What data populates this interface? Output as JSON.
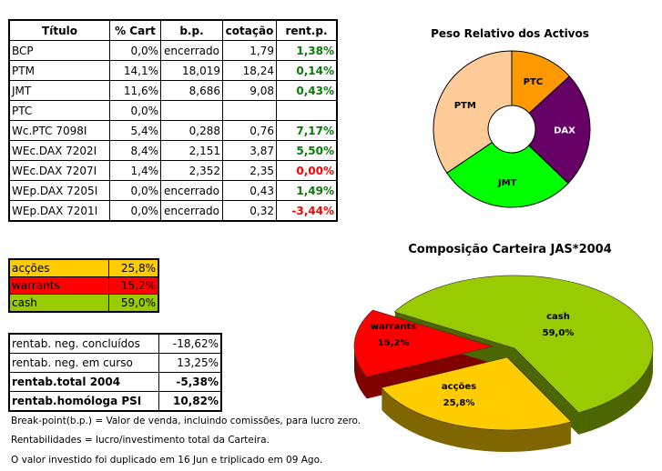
{
  "holdings": {
    "headers": [
      "Título",
      "% Cart",
      "b.p.",
      "cotação",
      "rent.p."
    ],
    "rows": [
      {
        "titulo": "BCP",
        "cart": "0,0%",
        "bp": "encerrado",
        "cotacao": "1,79",
        "rent": "1,38%",
        "sign": "pos"
      },
      {
        "titulo": "PTM",
        "cart": "14,1%",
        "bp": "18,019",
        "cotacao": "18,24",
        "rent": "0,14%",
        "sign": "pos"
      },
      {
        "titulo": "JMT",
        "cart": "11,6%",
        "bp": "8,686",
        "cotacao": "9,08",
        "rent": "0,43%",
        "sign": "pos"
      },
      {
        "titulo": "PTC",
        "cart": "0,0%",
        "bp": "",
        "cotacao": "",
        "rent": "",
        "sign": "pos"
      },
      {
        "titulo": "Wc.PTC 7098I",
        "cart": "5,4%",
        "bp": "0,288",
        "cotacao": "0,76",
        "rent": "7,17%",
        "sign": "pos"
      },
      {
        "titulo": "WEc.DAX 7202I",
        "cart": "8,4%",
        "bp": "2,151",
        "cotacao": "3,87",
        "rent": "5,50%",
        "sign": "pos"
      },
      {
        "titulo": "WEc.DAX 7207I",
        "cart": "1,4%",
        "bp": "2,352",
        "cotacao": "2,35",
        "rent": "0,00%",
        "sign": "neg"
      },
      {
        "titulo": "WEp.DAX 7205I",
        "cart": "0,0%",
        "bp": "encerrado",
        "cotacao": "0,43",
        "rent": "1,49%",
        "sign": "pos"
      },
      {
        "titulo": "WEp.DAX 7201I",
        "cart": "0,0%",
        "bp": "encerrado",
        "cotacao": "0,32",
        "rent": "-3,44%",
        "sign": "neg"
      }
    ]
  },
  "allocation": [
    {
      "label": "acções",
      "value": "25,8%",
      "color": "#ffcc00"
    },
    {
      "label": "warrants",
      "value": "15,2%",
      "color": "#ff0000"
    },
    {
      "label": "cash",
      "value": "59,0%",
      "color": "#99cc00"
    }
  ],
  "returns": [
    {
      "label": "rentab. neg. concluídos",
      "value": "-18,62%",
      "bold": false
    },
    {
      "label": "rentab. neg. em curso",
      "value": "13,25%",
      "bold": false
    },
    {
      "label": "rentab.total 2004",
      "value": "-5,38%",
      "bold": true
    },
    {
      "label": "rentab.homóloga PSI",
      "value": "10,82%",
      "bold": true
    }
  ],
  "notes": [
    "Break-point(b.p.) = Valor de venda, incluindo comissões, para lucro zero.",
    "Rentabilidades = lucro/investimento total da Carteira.",
    "O valor investido foi duplicado em 16 Jun e triplicado em 09 Ago."
  ],
  "chart_data": [
    {
      "type": "pie",
      "title": "Peso Relativo dos Activos",
      "donut": true,
      "categories": [
        "PTC",
        "DAX",
        "JMT",
        "PTM"
      ],
      "values": [
        5.4,
        9.8,
        11.6,
        14.1
      ],
      "colors": [
        "#ff9900",
        "#660066",
        "#00ff00",
        "#ffcc99"
      ],
      "label_colors": [
        "#000",
        "#fff",
        "#000",
        "#000"
      ]
    },
    {
      "type": "pie",
      "title": "Composição Carteira JAS*2004",
      "3d": true,
      "categories": [
        "cash",
        "acções",
        "warrants"
      ],
      "values": [
        59.0,
        25.8,
        15.2
      ],
      "labels": [
        "59,0%",
        "25,8%",
        "15,2%"
      ],
      "colors": [
        "#99cc00",
        "#ffcc00",
        "#ff0000"
      ],
      "side_colors": [
        "#4d6600",
        "#806600",
        "#800000"
      ]
    }
  ]
}
